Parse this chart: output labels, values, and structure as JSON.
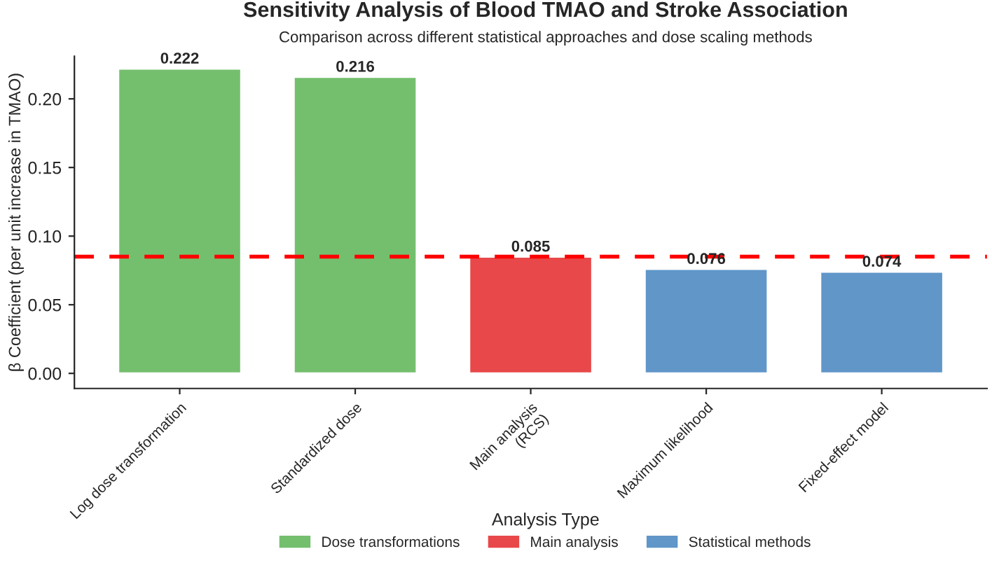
{
  "chart_data": {
    "type": "bar",
    "title": "Sensitivity Analysis of Blood TMAO and Stroke Association",
    "subtitle": "Comparison across different statistical approaches and dose scaling methods",
    "ylabel": "β Coefficient (per unit increase in TMAO)",
    "legend_title": "Analysis Type",
    "categories": [
      "Log dose transformation",
      "Standardized dose",
      "Main analysis\n(RCS)",
      "Maximum likelihood",
      "Fixed-effect model"
    ],
    "series": [
      {
        "name": "Dose transformations",
        "color": "#74bf6e",
        "values": [
          0.222,
          0.216,
          null,
          null,
          null
        ]
      },
      {
        "name": "Main analysis",
        "color": "#e8484a",
        "values": [
          null,
          null,
          0.085,
          null,
          null
        ]
      },
      {
        "name": "Statistical methods",
        "color": "#6096c8",
        "values": [
          null,
          null,
          null,
          0.076,
          0.074
        ]
      }
    ],
    "ylim": [
      -0.011,
      0.231
    ],
    "yticks": [
      {
        "value": 0,
        "label": "0.00"
      },
      {
        "value": 0.05,
        "label": "0.05"
      },
      {
        "value": 0.1,
        "label": "0.10"
      },
      {
        "value": 0.15,
        "label": "0.15"
      },
      {
        "value": 0.2,
        "label": "0.20"
      }
    ],
    "ref_lines": [
      {
        "axis": "y",
        "value": 0.085,
        "color": "#ff0000",
        "line_style": "dashed"
      }
    ],
    "data_labels": true,
    "grid": false,
    "legend": "bottom"
  }
}
